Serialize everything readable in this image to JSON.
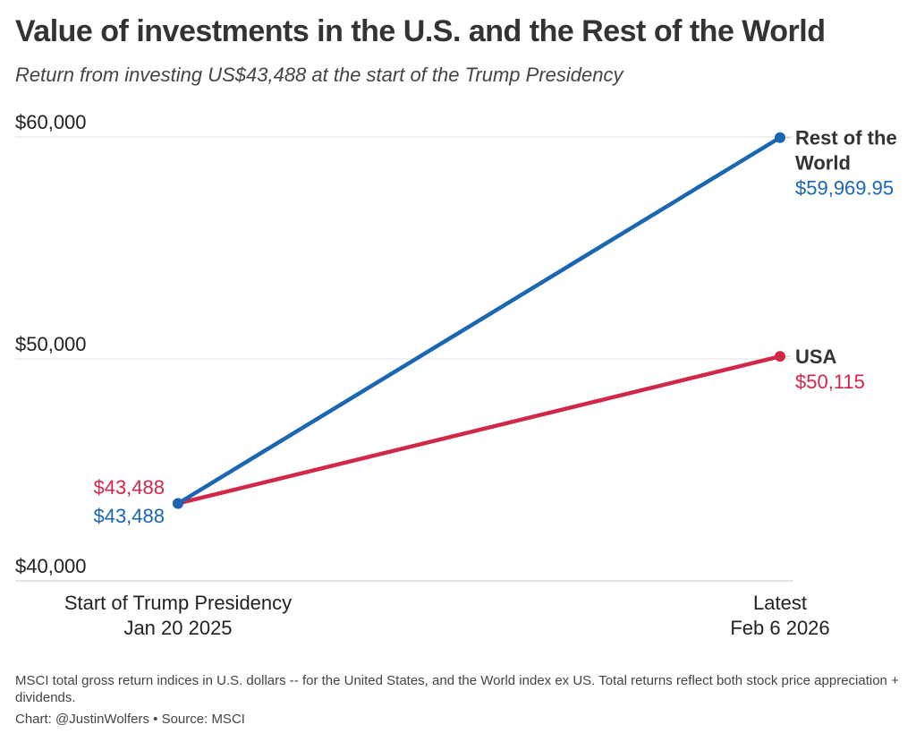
{
  "chart_data": {
    "type": "line",
    "title": "Value of investments in the U.S. and the Rest of the World",
    "subtitle": "Return from investing US$43,488 at the start of the Trump Presidency",
    "xlabel": "",
    "ylabel": "",
    "x": [
      {
        "line1": "Start of Trump Presidency",
        "line2": "Jan 20 2025"
      },
      {
        "line1": "Latest",
        "line2": "Feb 6 2026"
      }
    ],
    "ylim": [
      40000,
      60000
    ],
    "yticks": [
      {
        "value": 60000,
        "label": "$60,000"
      },
      {
        "value": 50000,
        "label": "$50,000"
      },
      {
        "value": 40000,
        "label": "$40,000"
      }
    ],
    "grid": true,
    "legend": "direct-labels-right",
    "series": [
      {
        "name": "Rest of the World",
        "name_lines": [
          "Rest of the",
          "World"
        ],
        "color": "#1a66b3",
        "values": [
          43488,
          59969.95
        ],
        "start_label": "$43,488",
        "end_label": "$59,969.95"
      },
      {
        "name": "USA",
        "name_lines": [
          "USA"
        ],
        "color": "#d1284a",
        "values": [
          43488,
          50115
        ],
        "start_label": "$43,488",
        "end_label": "$50,115"
      }
    ],
    "notes": "MSCI total gross return indices in U.S. dollars -- for the United States, and the World index ex US. Total returns reflect both stock price appreciation + dividends.",
    "credit": "Chart: @JustinWolfers • Source: MSCI"
  }
}
